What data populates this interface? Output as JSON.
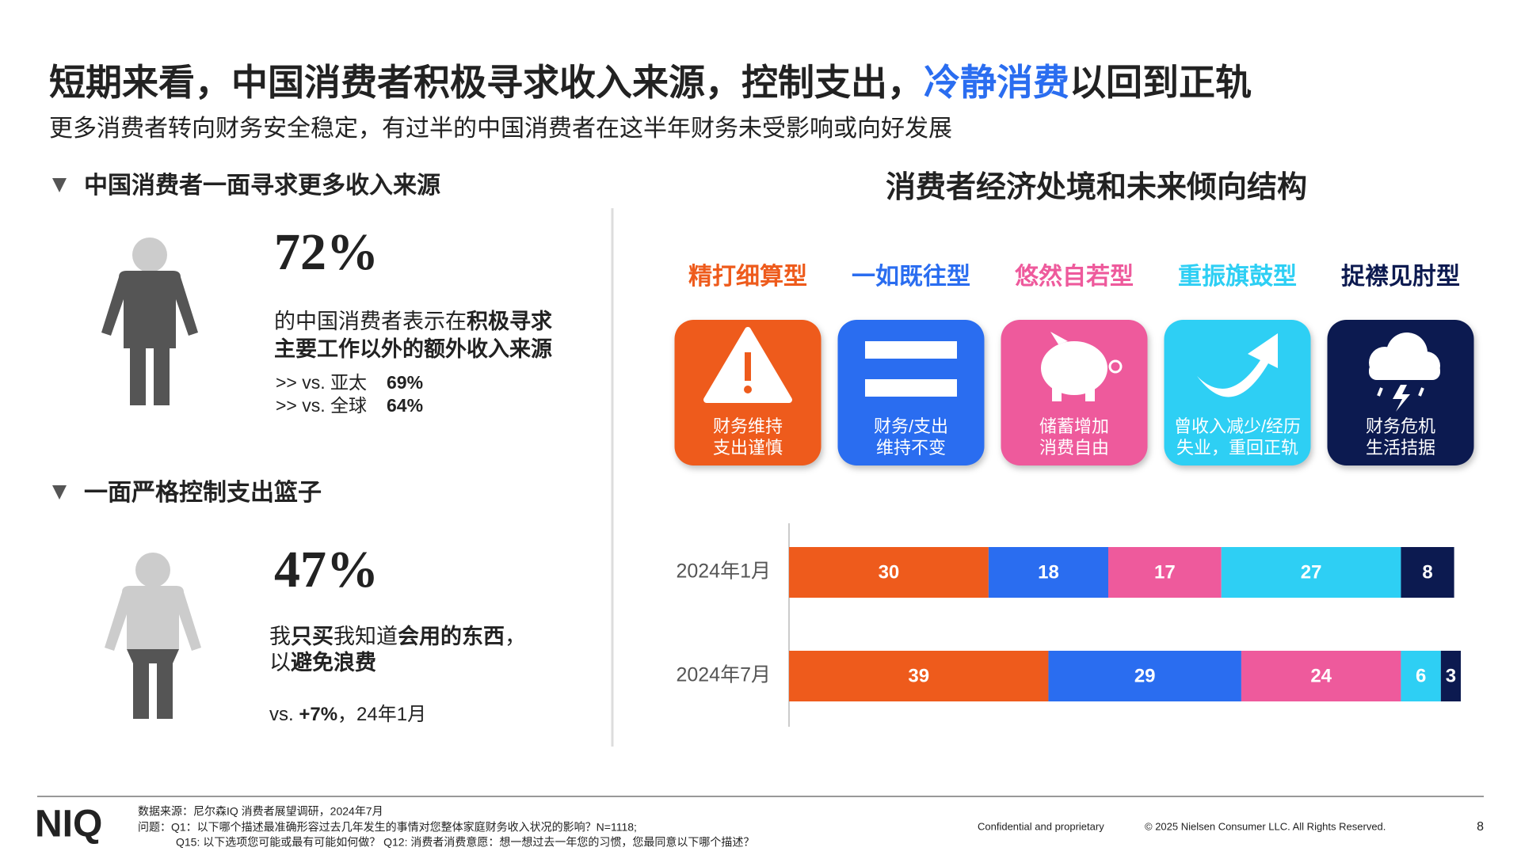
{
  "title": {
    "parts": [
      "短期来看，中国消费者积极寻求收入来源，控制支出，",
      "冷静消费",
      "以回到正轨"
    ]
  },
  "subtitle": "更多消费者转向财务安全稳定，有过半的中国消费者在这半年财务未受影响或向好发展",
  "left": {
    "section1": {
      "heading": "中国消费者一面寻求更多收入来源",
      "stat": "72%",
      "line1": [
        "的中国消费者表示在",
        "积极寻求"
      ],
      "line2": [
        "主要工作以外的额外收入来源"
      ],
      "comparisons": [
        {
          "label": ">> vs. 亚太",
          "value": "69%"
        },
        {
          "label": ">> vs. 全球",
          "value": "64%"
        }
      ]
    },
    "section2": {
      "heading": "一面严格控制支出篮子",
      "stat": "47%",
      "line1": [
        "我",
        "只买",
        "我知道",
        "会用的东西",
        "，"
      ],
      "line2": [
        "以",
        "避免浪费"
      ],
      "comparison": [
        "vs. ",
        "+7%",
        "，24年1月"
      ]
    }
  },
  "chart_data": {
    "type": "stacked-bar-horizontal",
    "title": "消费者经济处境和未来倾向结构",
    "categories": [
      "2024年1月",
      "2024年7月"
    ],
    "xlim": [
      0,
      101
    ],
    "series": [
      {
        "name": "精打细算型",
        "color": "#ee5b1c",
        "description": [
          "财务维持",
          "支出谨慎"
        ],
        "values": [
          30,
          39
        ]
      },
      {
        "name": "一如既往型",
        "color": "#2a6df0",
        "description": [
          "财务/支出",
          "维持不变"
        ],
        "values": [
          18,
          29
        ]
      },
      {
        "name": "悠然自若型",
        "color": "#ee5a9c",
        "description": [
          "储蓄增加",
          "消费自由"
        ],
        "values": [
          17,
          24
        ]
      },
      {
        "name": "重振旗鼓型",
        "color": "#2ecff4",
        "description": [
          "曾收入减少/经历",
          "失业，重回正轨"
        ],
        "values": [
          27,
          6
        ]
      },
      {
        "name": "捉襟见肘型",
        "color": "#0c1a50",
        "description": [
          "财务危机",
          "生活拮据"
        ],
        "values": [
          8,
          3
        ]
      }
    ]
  },
  "footer": {
    "logo": "NIQ",
    "notes": [
      "数据来源：尼尔森IQ 消费者展望调研，2024年7月",
      "问题：Q1：以下哪个描述最准确形容过去几年发生的事情对您整体家庭财务收入状况的影响？N=1118;",
      "Q15: 以下选项您可能或最有可能如何做？ Q12: 消费者消费意愿：想一想过去一年您的习惯，您最同意以下哪个描述？"
    ],
    "confidential": "Confidential and proprietary",
    "copyright": "© 2025 Nielsen Consumer LLC. All Rights Reserved.",
    "page": "8"
  }
}
